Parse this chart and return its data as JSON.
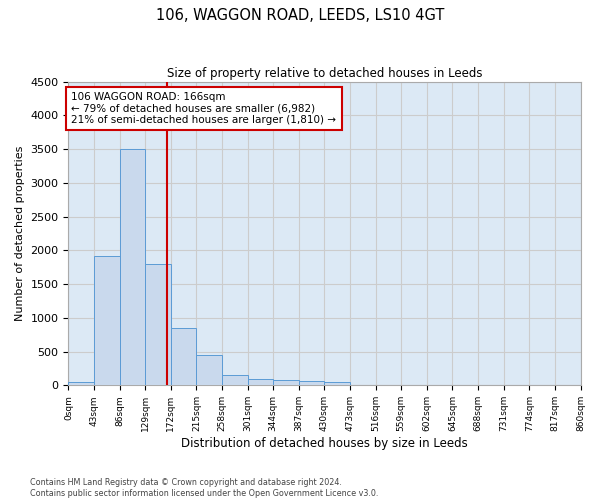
{
  "title": "106, WAGGON ROAD, LEEDS, LS10 4GT",
  "subtitle": "Size of property relative to detached houses in Leeds",
  "xlabel": "Distribution of detached houses by size in Leeds",
  "ylabel": "Number of detached properties",
  "bar_edges": [
    0,
    43,
    86,
    129,
    172,
    215,
    258,
    301,
    344,
    387,
    430,
    473,
    516,
    559,
    602,
    645,
    688,
    731,
    774,
    817,
    860
  ],
  "bar_heights": [
    50,
    1920,
    3500,
    1800,
    850,
    450,
    160,
    100,
    80,
    60,
    50,
    0,
    0,
    0,
    0,
    0,
    0,
    0,
    0,
    0
  ],
  "bar_color": "#c9d9ed",
  "bar_edge_color": "#5b9bd5",
  "property_size": 166,
  "vline_color": "#cc0000",
  "annotation_text": "106 WAGGON ROAD: 166sqm\n← 79% of detached houses are smaller (6,982)\n21% of semi-detached houses are larger (1,810) →",
  "annotation_box_color": "#cc0000",
  "ylim": [
    0,
    4500
  ],
  "yticks": [
    0,
    500,
    1000,
    1500,
    2000,
    2500,
    3000,
    3500,
    4000,
    4500
  ],
  "grid_color": "#cccccc",
  "background_color": "#dce9f5",
  "footer_line1": "Contains HM Land Registry data © Crown copyright and database right 2024.",
  "footer_line2": "Contains public sector information licensed under the Open Government Licence v3.0.",
  "tick_labels": [
    "0sqm",
    "43sqm",
    "86sqm",
    "129sqm",
    "172sqm",
    "215sqm",
    "258sqm",
    "301sqm",
    "344sqm",
    "387sqm",
    "430sqm",
    "473sqm",
    "516sqm",
    "559sqm",
    "602sqm",
    "645sqm",
    "688sqm",
    "731sqm",
    "774sqm",
    "817sqm",
    "860sqm"
  ]
}
